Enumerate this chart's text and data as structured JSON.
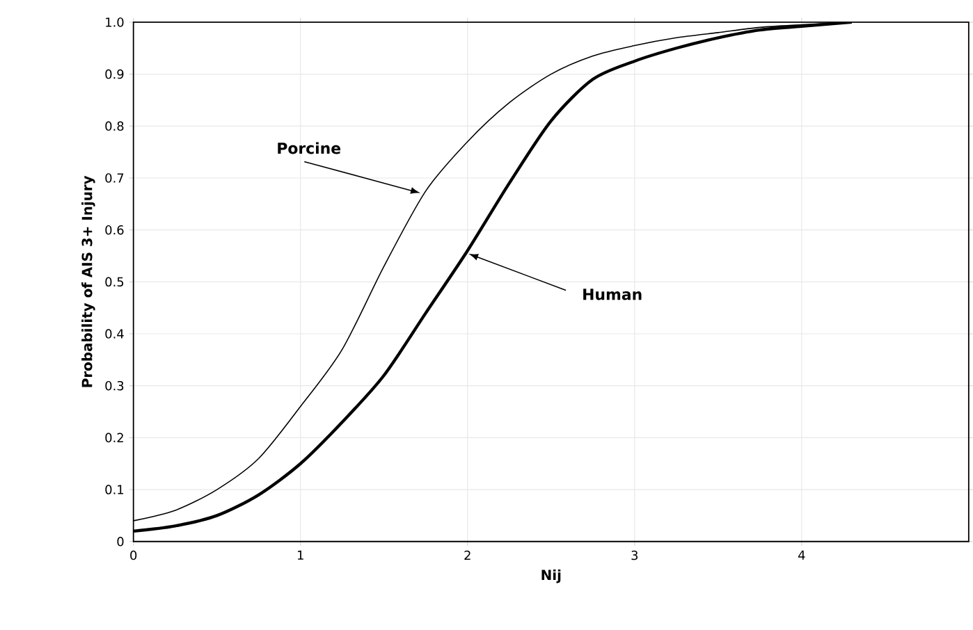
{
  "chart_data": {
    "type": "line",
    "xlabel": "Nij",
    "ylabel": "Probability of AIS 3+ Injury",
    "xlim": [
      0,
      5
    ],
    "xticks": [
      0,
      1,
      2,
      3,
      4
    ],
    "ylim": [
      0,
      1
    ],
    "yticks": [
      0,
      0.1,
      0.2,
      0.3,
      0.4,
      0.5,
      0.6,
      0.7,
      0.8,
      0.9,
      {
        "value": 1,
        "label": "1.0"
      }
    ],
    "annotations": [
      {
        "text": "Porcine",
        "x": 1.73,
        "y": 0.67
      },
      {
        "text": "Human",
        "x": 1.99,
        "y": 0.556
      }
    ],
    "grid": true,
    "marker": "none",
    "line_style": "solid",
    "series": [
      {
        "color": "#000000",
        "x": [
          0,
          0.25,
          0.5,
          0.75,
          1,
          1.25,
          1.5,
          1.75,
          2,
          2.25,
          2.5,
          2.75,
          3,
          3.25,
          3.5,
          3.75,
          4,
          4.3
        ],
        "values": [
          0.04,
          0.06,
          0.1,
          0.16,
          0.26,
          0.37,
          0.53,
          0.675,
          0.77,
          0.845,
          0.9,
          0.935,
          0.955,
          0.97,
          0.98,
          0.99,
          0.995,
          1.0
        ]
      },
      {
        "color": "#000000",
        "x": [
          0,
          0.25,
          0.5,
          0.75,
          1,
          1.25,
          1.5,
          1.75,
          2,
          2.25,
          2.5,
          2.75,
          3,
          3.25,
          3.5,
          3.75,
          4,
          4.3
        ],
        "values": [
          0.02,
          0.03,
          0.05,
          0.09,
          0.15,
          0.23,
          0.32,
          0.44,
          0.56,
          0.69,
          0.81,
          0.89,
          0.925,
          0.95,
          0.97,
          0.985,
          0.992,
          1.0
        ]
      }
    ]
  }
}
